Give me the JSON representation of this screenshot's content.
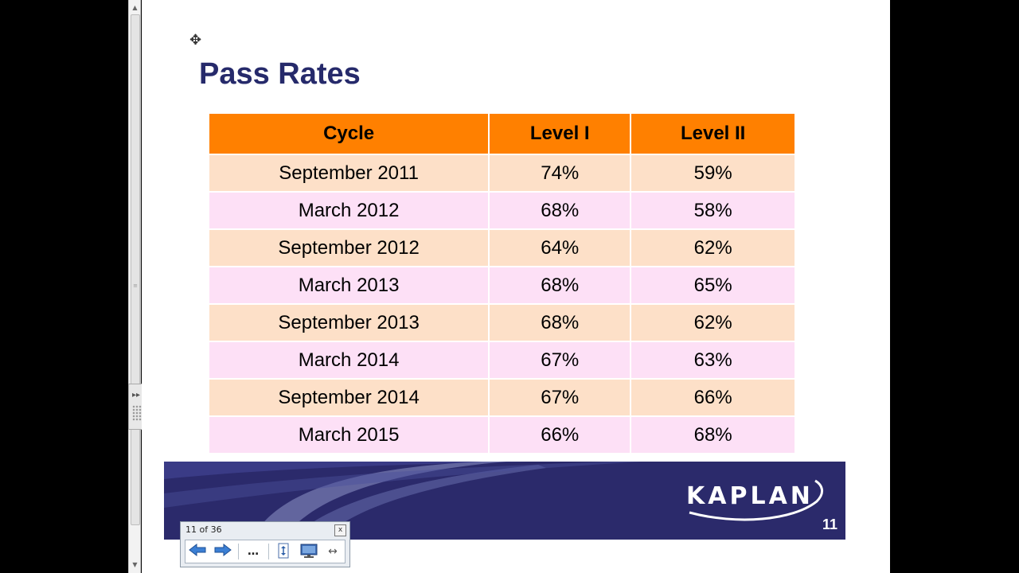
{
  "slide": {
    "title": "Pass Rates",
    "table": {
      "headers": [
        "Cycle",
        "Level I",
        "Level II"
      ],
      "rows": [
        [
          "September 2011",
          "74%",
          "59%"
        ],
        [
          "March 2012",
          "68%",
          "58%"
        ],
        [
          "September 2012",
          "64%",
          "62%"
        ],
        [
          "March 2013",
          "68%",
          "65%"
        ],
        [
          "September 2013",
          "68%",
          "62%"
        ],
        [
          "March 2014",
          "67%",
          "63%"
        ],
        [
          "September 2014",
          "67%",
          "66%"
        ],
        [
          "March 2015",
          "66%",
          "68%"
        ]
      ]
    },
    "footer": {
      "logo": "KAPLAN",
      "page_number": "11"
    }
  },
  "navigator": {
    "counter": "11 of 36",
    "close_label": "x",
    "buttons": [
      "previous-slide",
      "next-slide",
      "more",
      "fit-height",
      "slideshow",
      "fit-width"
    ]
  },
  "colors": {
    "title": "#262a6b",
    "header_bg": "#ff8000",
    "row_odd": "#fde0c8",
    "row_even": "#fde0f6",
    "banner": "#2b2a6b"
  }
}
